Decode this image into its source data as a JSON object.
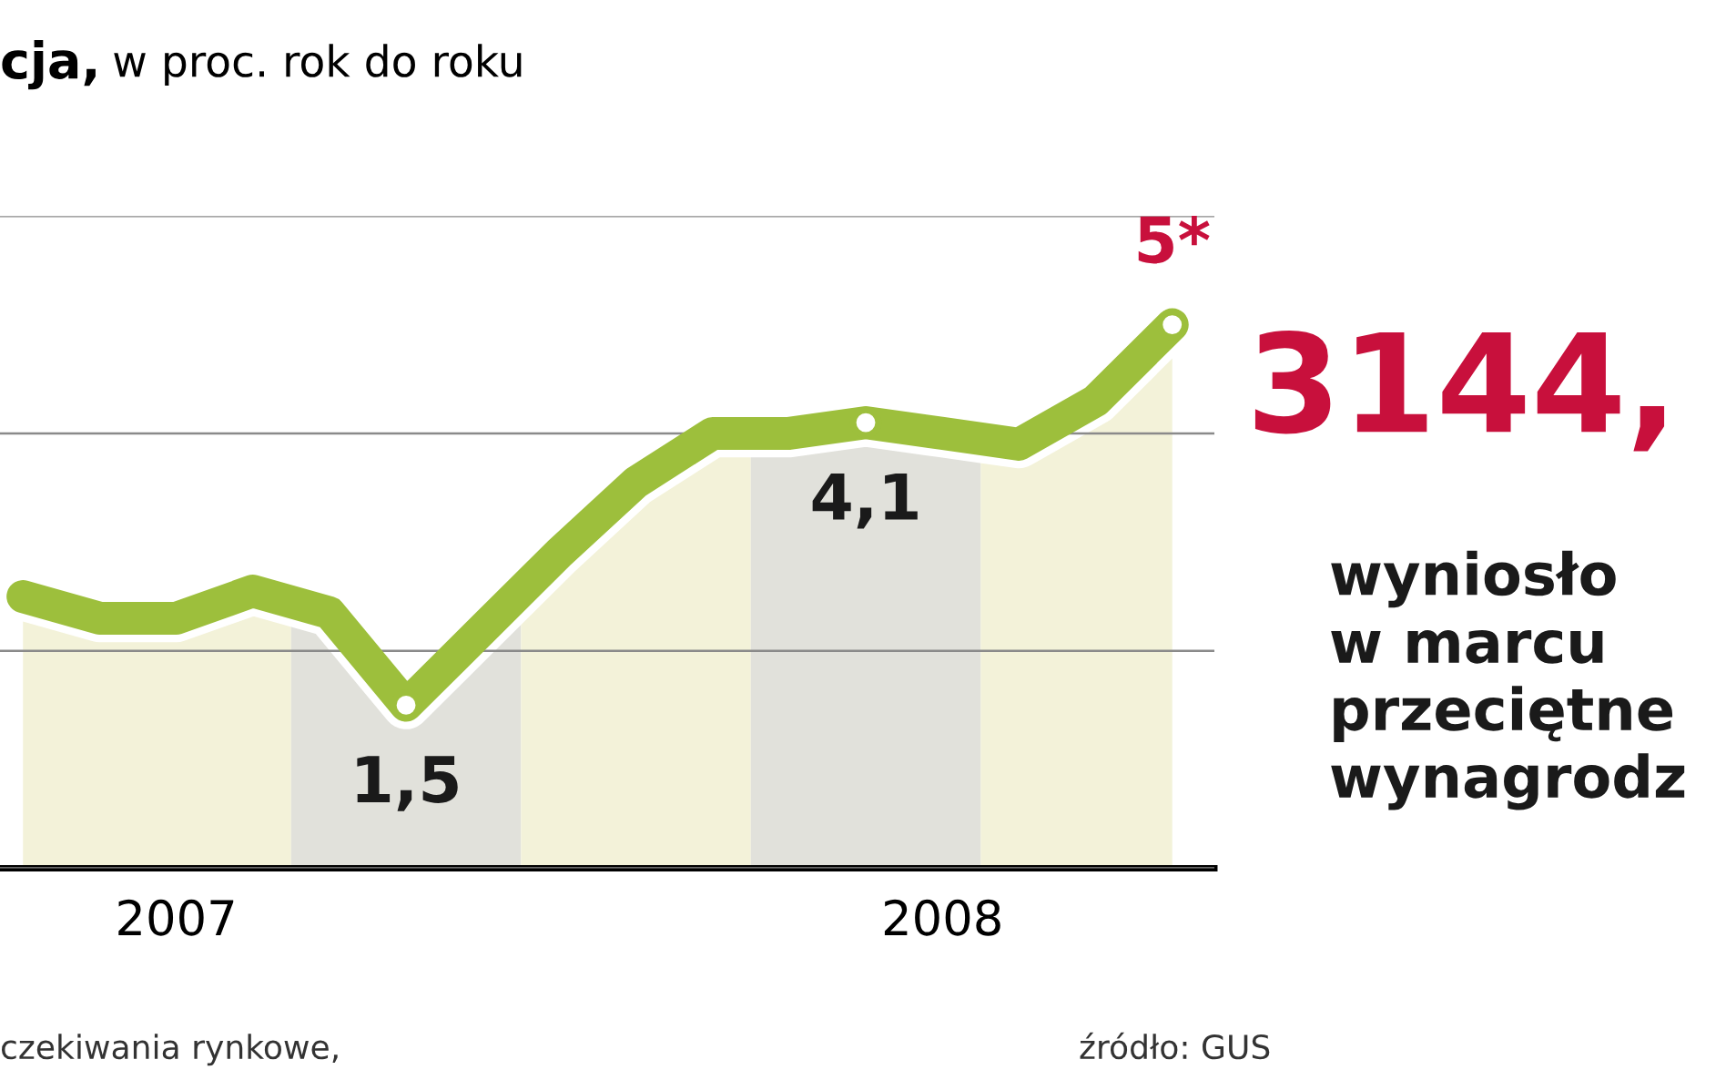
{
  "chart_data": {
    "type": "line",
    "title": "cja,",
    "subtitle": "w proc. rok do roku",
    "categories": [
      null,
      null,
      "2007",
      null,
      null,
      null,
      null,
      null,
      null,
      null,
      null,
      null,
      "2008",
      null,
      null,
      null
    ],
    "series": [
      {
        "color": "#9dbf3c",
        "values": [
          2.5,
          2.3,
          2.3,
          2.55,
          2.35,
          1.5,
          2.2,
          2.9,
          3.55,
          4.0,
          4.0,
          4.1,
          4.0,
          3.9,
          4.3,
          5
        ],
        "value_labels": [
          null,
          null,
          null,
          null,
          null,
          "1,5",
          null,
          null,
          null,
          null,
          null,
          "4,1",
          null,
          null,
          null,
          "5*"
        ]
      }
    ],
    "ylim": [
      0,
      6
    ],
    "yticks": [
      {
        "value": 0,
        "label": null
      },
      {
        "value": 2,
        "label": null
      },
      {
        "value": 4,
        "label": null
      },
      {
        "value": 6,
        "label": null
      }
    ],
    "tick_labels": "x",
    "grid": "y",
    "annotations": [
      "3144,",
      "wyniosło\nw marcu\nprzeciętne\nwynagrodz",
      "czekiwania rynkowe,",
      "źródło: GUS"
    ]
  }
}
